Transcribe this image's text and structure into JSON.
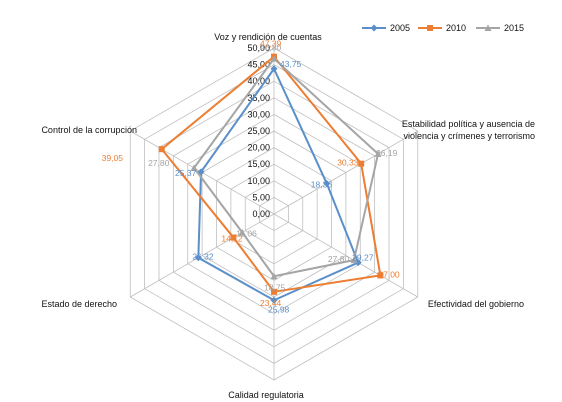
{
  "chart_data": {
    "type": "radar",
    "title": "",
    "categories": [
      "Voz y rendición  de cuentas",
      "Estabilidad  política  y ausencia de violencia y crímenes y terrorismo",
      "Efectividad del gobierno",
      "Calidad regulatoria",
      "Estado de derecho",
      "Control  de la corrupción"
    ],
    "category_lines": [
      [
        "Voz y rendición  de cuentas"
      ],
      [
        "Estabilidad  política  y ausencia de",
        "violencia y crímenes y terrorismo"
      ],
      [
        "Efectividad del gobierno"
      ],
      [
        "Calidad regulatoria"
      ],
      [
        "Estado de derecho"
      ],
      [
        "Control  de la corrupción"
      ]
    ],
    "r_ticks": [
      0,
      5,
      10,
      15,
      20,
      25,
      30,
      35,
      40,
      45,
      50
    ],
    "r_tick_labels": [
      "0,00",
      "5,00",
      "10,00",
      "15,00",
      "20,00",
      "25,00",
      "30,00",
      "35,00",
      "40,00",
      "45,00",
      "50,00"
    ],
    "rlim": [
      0,
      50
    ],
    "legend_position": "top-right",
    "series": [
      {
        "name": "2005",
        "color": "#5b8fc9",
        "marker": "diamond",
        "values": [
          43.75,
          18.36,
          29.27,
          25.98,
          26.32,
          25.37
        ],
        "labels": [
          "43,75",
          "18,36",
          "29,27",
          "25,98",
          "26,32",
          "25,37"
        ]
      },
      {
        "name": "2010",
        "color": "#ed7d31",
        "marker": "square",
        "values": [
          47.39,
          30.33,
          37.0,
          23.44,
          14.12,
          39.05
        ],
        "labels": [
          "47,39",
          "30,33",
          "37,00",
          "23,44",
          "14,12",
          "39,05"
        ]
      },
      {
        "name": "2015",
        "color": "#a5a5a5",
        "marker": "triangle",
        "values": [
          46.8,
          36.19,
          27.8,
          18.75,
          11.06,
          27.8
        ],
        "labels": [
          "46,80",
          "36,19",
          "27,80",
          "18,75",
          "11,06",
          "27,80"
        ]
      }
    ]
  }
}
